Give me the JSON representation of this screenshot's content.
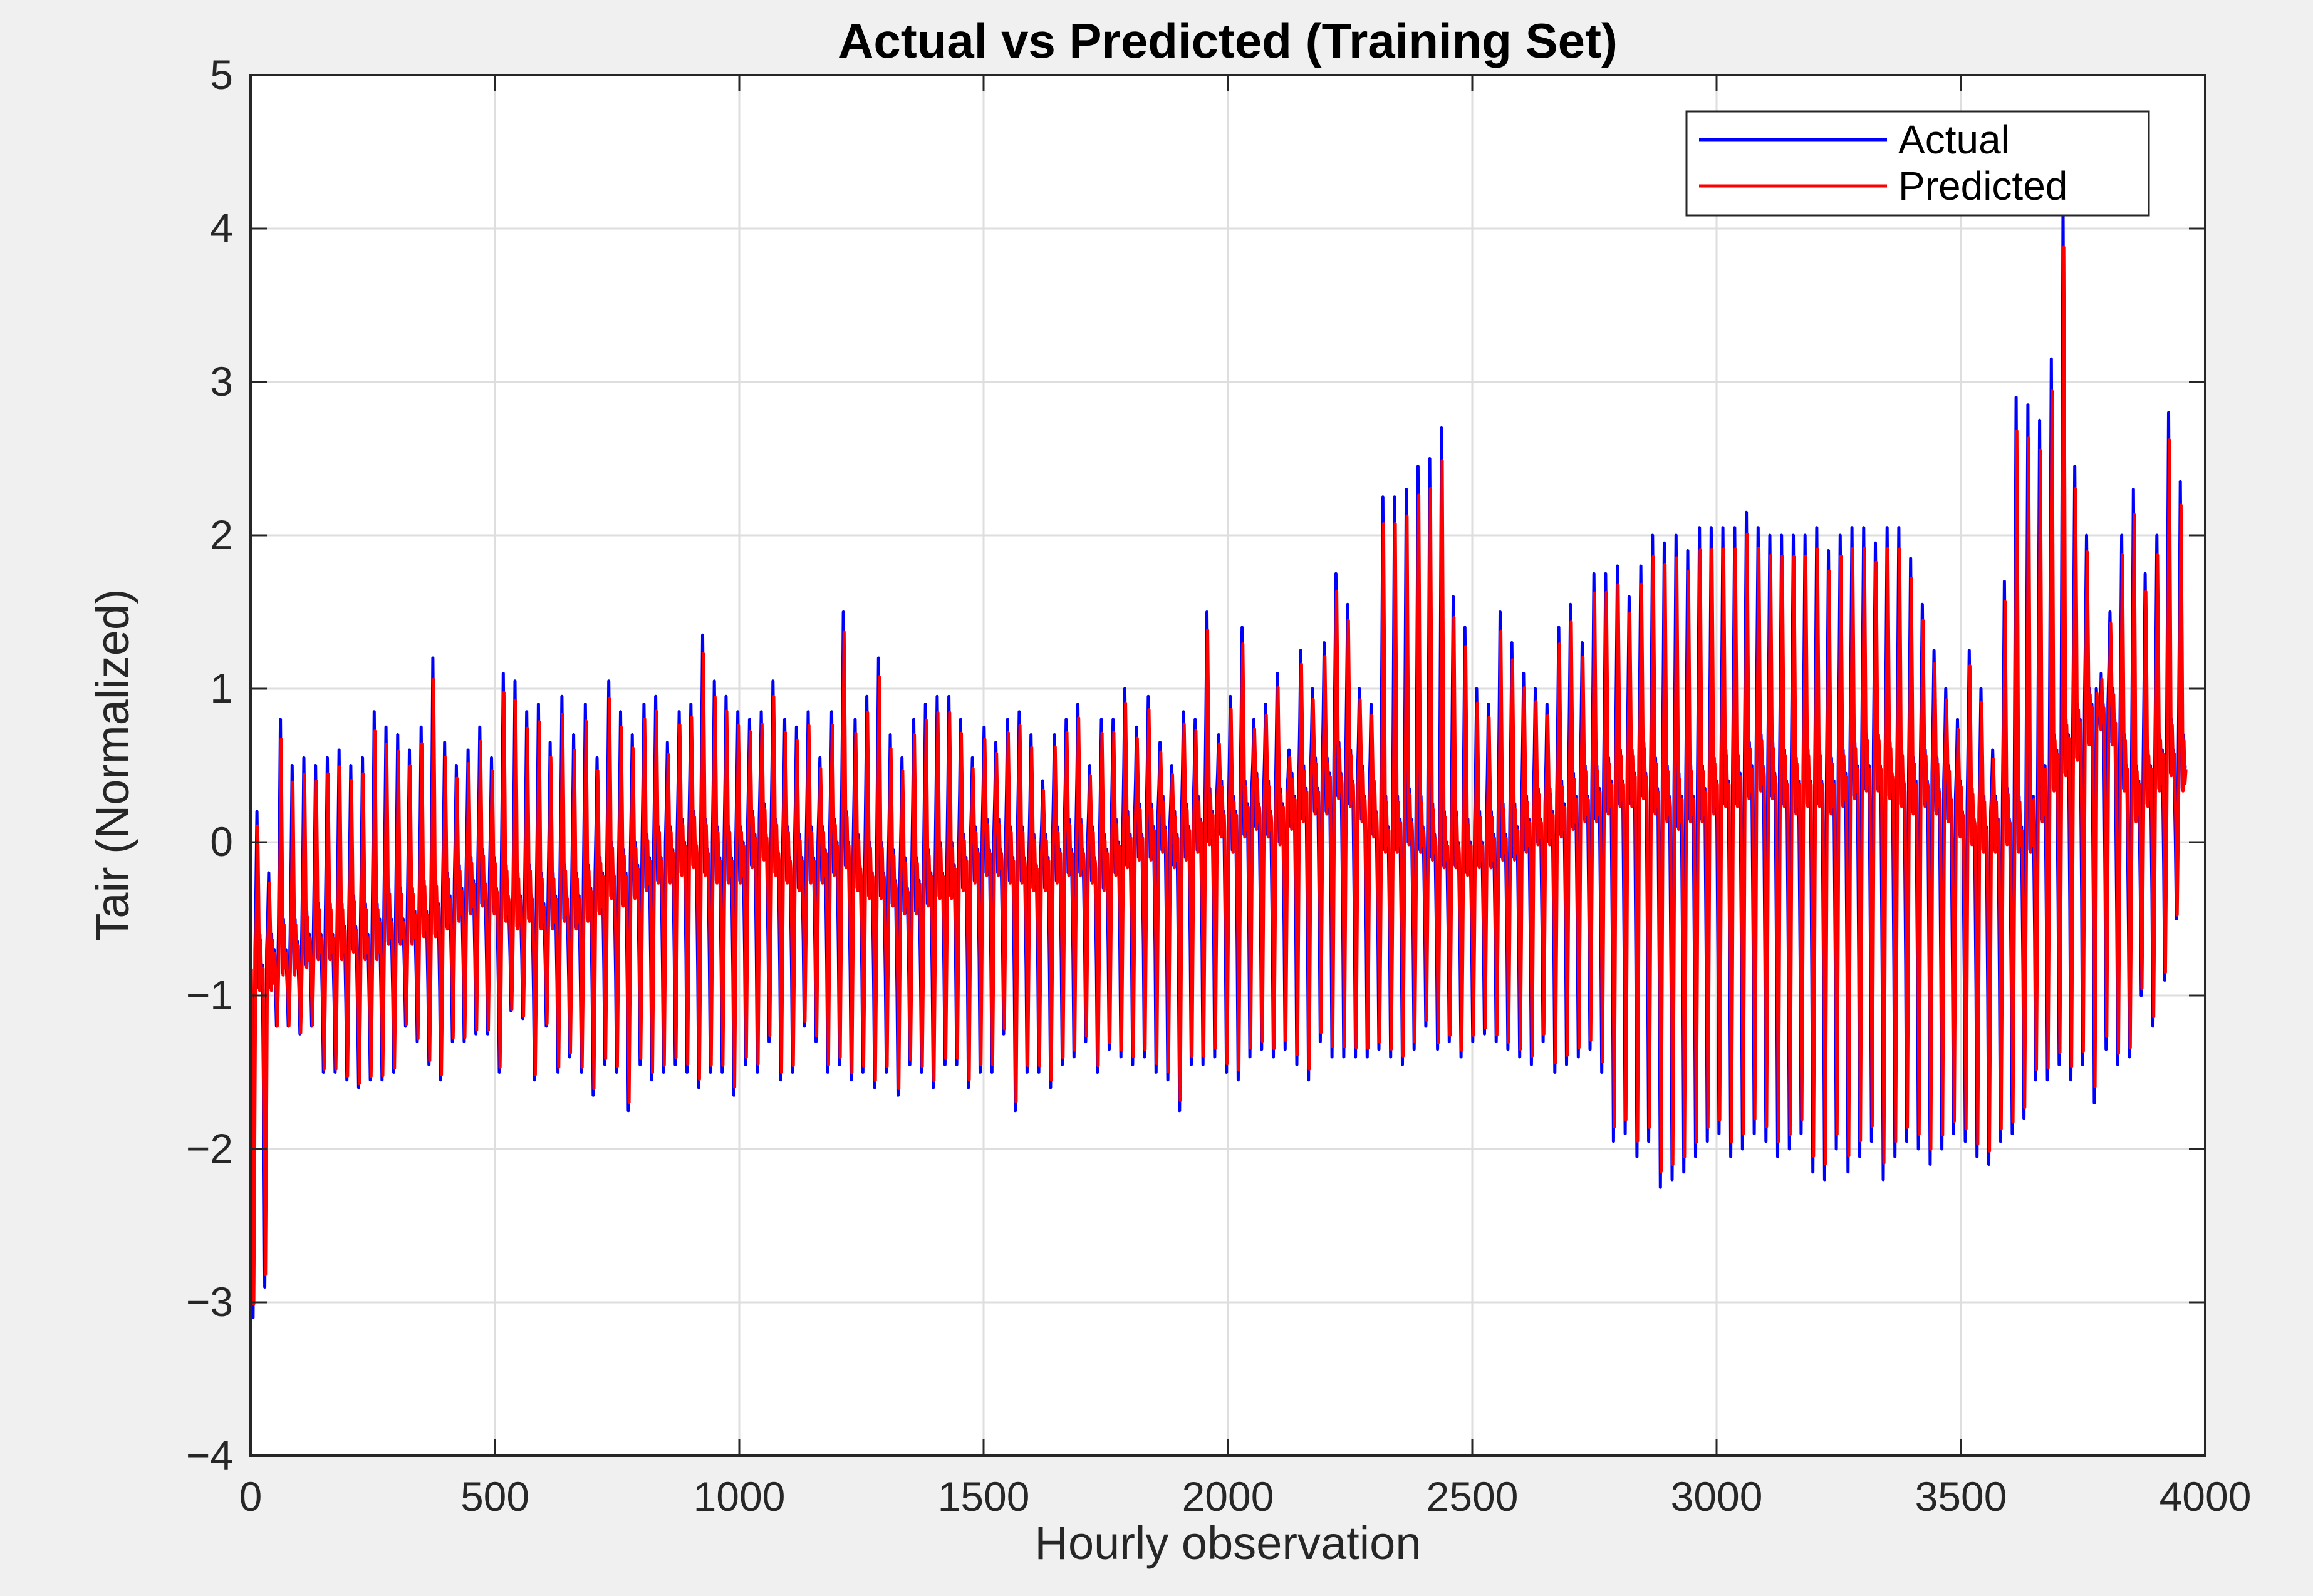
{
  "chart_data": {
    "type": "line",
    "title": "Actual vs Predicted (Training Set)",
    "xlabel": "Hourly observation",
    "ylabel": "Tair (Normalized)",
    "xlim": [
      0,
      4000
    ],
    "ylim": [
      -4,
      5
    ],
    "xticks": [
      0,
      500,
      1000,
      1500,
      2000,
      2500,
      3000,
      3500,
      4000
    ],
    "xtick_labels": [
      "0",
      "500",
      "1000",
      "1500",
      "2000",
      "2500",
      "3000",
      "3500",
      "4000"
    ],
    "yticks": [
      -4,
      -3,
      -2,
      -1,
      0,
      1,
      2,
      3,
      4,
      5
    ],
    "ytick_labels": [
      "−4",
      "−3",
      "−2",
      "−1",
      "0",
      "1",
      "2",
      "3",
      "4",
      "5"
    ],
    "grid": true,
    "legend_position": "top-right",
    "series": [
      {
        "name": "Actual",
        "color": "#0000ff"
      },
      {
        "name": "Predicted",
        "color": "#ff0000"
      }
    ],
    "x_start": 0,
    "x_end": 3960,
    "cycle_length": 24,
    "cycle_peaks": [
      0.2,
      -0.2,
      0.8,
      0.5,
      0.55,
      0.5,
      0.55,
      0.6,
      0.5,
      0.55,
      0.85,
      0.75,
      0.7,
      0.6,
      0.75,
      1.2,
      0.65,
      0.5,
      0.6,
      0.75,
      0.55,
      1.1,
      1.05,
      0.85,
      0.9,
      0.65,
      0.95,
      0.7,
      0.9,
      0.55,
      1.05,
      0.85,
      0.7,
      0.9,
      0.95,
      0.65,
      0.85,
      0.9,
      1.35,
      1.05,
      0.95,
      0.85,
      0.8,
      0.85,
      1.05,
      0.8,
      0.75,
      0.85,
      0.55,
      0.85,
      1.5,
      0.8,
      0.95,
      1.2,
      0.7,
      0.55,
      0.8,
      0.9,
      0.95,
      0.95,
      0.8,
      0.55,
      0.75,
      0.65,
      0.8,
      0.85,
      0.7,
      0.4,
      0.7,
      0.8,
      0.9,
      0.5,
      0.8,
      0.8,
      1.0,
      0.75,
      0.95,
      0.65,
      0.5,
      0.85,
      0.8,
      1.5,
      0.7,
      0.95,
      1.4,
      0.8,
      0.9,
      1.1,
      0.6,
      1.25,
      1.0,
      1.3,
      1.75,
      1.55,
      1.0,
      0.9,
      2.25,
      2.25,
      2.3,
      2.45,
      2.5,
      2.7,
      1.6,
      1.4,
      1.0,
      0.9,
      1.5,
      1.3,
      1.1,
      1.0,
      0.9,
      1.4,
      1.55,
      1.3,
      1.75,
      1.75,
      1.8,
      1.6,
      1.8,
      2.0,
      1.95,
      2.0,
      1.9,
      2.05,
      2.05,
      2.05,
      2.05,
      2.15,
      2.05,
      2.0,
      2.0,
      2.0,
      2.0,
      2.05,
      1.9,
      2.0,
      2.05,
      2.05,
      1.95,
      2.05,
      2.05,
      1.85,
      1.55,
      1.25,
      1.0,
      0.8,
      1.25,
      1.0,
      0.6,
      1.7,
      2.9,
      2.85,
      2.75,
      3.15,
      4.15,
      2.45,
      2.0,
      0.85,
      1.5,
      2.0,
      2.3,
      1.75,
      2.0,
      2.8,
      2.35,
      3.2,
      2.25
    ],
    "cycle_troughs": [
      -3.1,
      -2.9,
      -1.2,
      -1.2,
      -1.25,
      -1.2,
      -1.5,
      -1.5,
      -1.55,
      -1.6,
      -1.55,
      -1.55,
      -1.5,
      -1.2,
      -1.3,
      -1.45,
      -1.55,
      -1.3,
      -1.3,
      -1.25,
      -1.25,
      -1.5,
      -1.1,
      -1.15,
      -1.55,
      -1.2,
      -1.5,
      -1.4,
      -1.5,
      -1.65,
      -1.45,
      -1.5,
      -1.75,
      -1.45,
      -1.55,
      -1.5,
      -1.45,
      -1.5,
      -1.6,
      -1.5,
      -1.5,
      -1.65,
      -1.45,
      -1.5,
      -1.3,
      -1.55,
      -1.5,
      -1.2,
      -1.3,
      -1.5,
      -1.45,
      -1.55,
      -1.5,
      -1.6,
      -1.5,
      -1.65,
      -1.45,
      -1.5,
      -1.6,
      -1.45,
      -1.45,
      -1.6,
      -1.5,
      -1.5,
      -1.25,
      -1.75,
      -1.5,
      -1.5,
      -1.6,
      -1.45,
      -1.4,
      -1.3,
      -1.5,
      -1.35,
      -1.4,
      -1.45,
      -1.4,
      -1.5,
      -1.55,
      -1.75,
      -1.45,
      -1.45,
      -1.4,
      -1.5,
      -1.55,
      -1.4,
      -1.35,
      -1.4,
      -1.35,
      -1.45,
      -1.55,
      -1.3,
      -1.4,
      -1.4,
      -1.4,
      -1.4,
      -1.35,
      -1.4,
      -1.45,
      -1.35,
      -1.2,
      -1.35,
      -1.3,
      -1.4,
      -1.3,
      -1.25,
      -1.3,
      -1.35,
      -1.4,
      -1.45,
      -1.3,
      -1.5,
      -1.45,
      -1.4,
      -1.35,
      -1.5,
      -1.95,
      -1.9,
      -2.05,
      -1.95,
      -2.25,
      -2.2,
      -2.15,
      -2.05,
      -1.95,
      -1.9,
      -2.05,
      -2.0,
      -1.9,
      -1.95,
      -2.05,
      -2.0,
      -1.9,
      -2.15,
      -2.2,
      -2.0,
      -2.15,
      -2.05,
      -1.95,
      -2.2,
      -2.05,
      -1.95,
      -2.0,
      -2.1,
      -2.0,
      -1.9,
      -1.95,
      -2.05,
      -2.1,
      -1.95,
      -1.9,
      -1.8,
      -1.55,
      -1.55,
      -1.45,
      -1.55,
      -1.45,
      -1.7,
      -1.35,
      -1.45,
      -1.4,
      -1.0,
      -1.2,
      -0.9,
      -0.5,
      -0.4,
      -0.9,
      -1.0,
      -0.9,
      -1.0,
      -1.0,
      -1.1,
      -1.3,
      -0.8,
      -1.05,
      -1.05
    ],
    "mid_level": [
      -0.8,
      -0.8,
      -0.7,
      -0.7,
      -0.65,
      -0.6,
      -0.6,
      -0.6,
      -0.55,
      -0.6,
      -0.6,
      -0.5,
      -0.5,
      -0.5,
      -0.45,
      -0.45,
      -0.4,
      -0.35,
      -0.3,
      -0.25,
      -0.3,
      -0.35,
      -0.4,
      -0.35,
      -0.4,
      -0.4,
      -0.35,
      -0.4,
      -0.35,
      -0.3,
      -0.2,
      -0.25,
      -0.2,
      -0.15,
      -0.1,
      -0.1,
      -0.05,
      0.0,
      -0.05,
      -0.1,
      -0.1,
      -0.1,
      0.0,
      0.05,
      -0.05,
      -0.1,
      -0.15,
      -0.1,
      -0.1,
      -0.05,
      0.0,
      -0.15,
      -0.2,
      -0.2,
      -0.25,
      -0.3,
      -0.3,
      -0.25,
      -0.2,
      -0.2,
      -0.15,
      -0.1,
      -0.05,
      -0.05,
      -0.1,
      -0.1,
      -0.15,
      -0.15,
      -0.1,
      -0.05,
      -0.05,
      -0.1,
      -0.15,
      -0.05,
      0.0,
      0.05,
      0.05,
      0.1,
      0.0,
      0.05,
      0.1,
      0.15,
      0.2,
      0.1,
      0.2,
      0.25,
      0.2,
      0.15,
      0.25,
      0.3,
      0.35,
      0.35,
      0.45,
      0.4,
      0.3,
      0.2,
      0.1,
      0.1,
      0.15,
      0.1,
      0.05,
      0.0,
      0.0,
      -0.05,
      0.0,
      0.0,
      0.05,
      0.05,
      0.1,
      0.15,
      0.15,
      0.2,
      0.25,
      0.3,
      0.3,
      0.35,
      0.4,
      0.4,
      0.45,
      0.35,
      0.3,
      0.25,
      0.3,
      0.3,
      0.35,
      0.4,
      0.4,
      0.45,
      0.5,
      0.45,
      0.4,
      0.35,
      0.4,
      0.4,
      0.35,
      0.4,
      0.45,
      0.5,
      0.5,
      0.45,
      0.4,
      0.35,
      0.4,
      0.35,
      0.3,
      0.2,
      0.15,
      0.1,
      0.1,
      0.15,
      0.1,
      0.1,
      0.3,
      0.5,
      0.6,
      0.7,
      0.8,
      0.9,
      0.8,
      0.5,
      0.3,
      0.4,
      0.5,
      0.6,
      0.5,
      0.5,
      0.7,
      0.6,
      0.9,
      0.8
    ],
    "predicted_offset": -0.08
  }
}
